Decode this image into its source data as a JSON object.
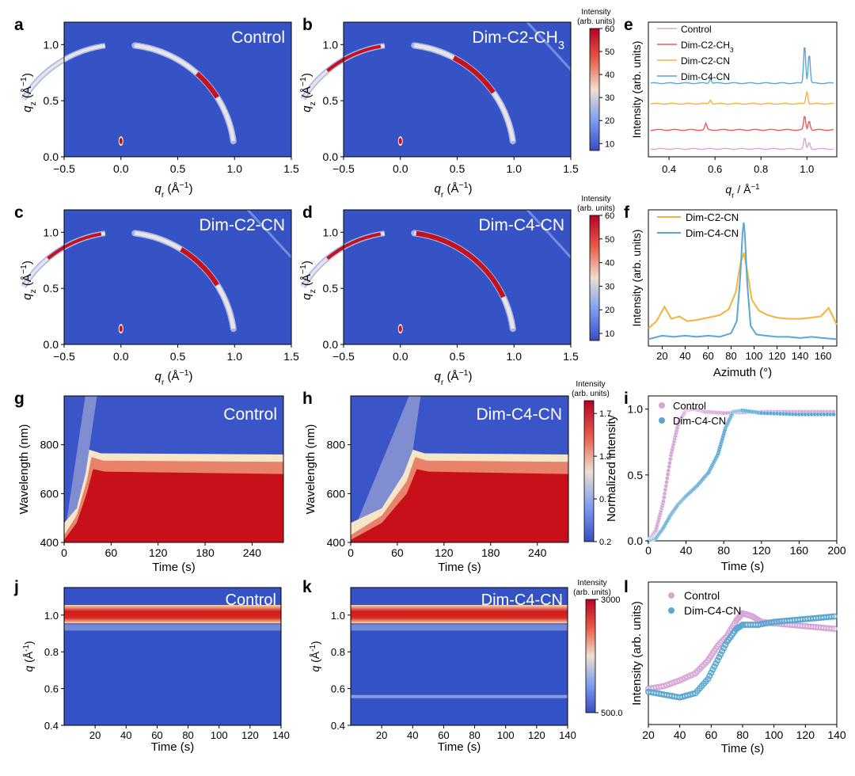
{
  "panels": {
    "a": {
      "letter": "a",
      "label": "Control"
    },
    "b": {
      "letter": "b",
      "label": "Dim-C2-CH",
      "label_sub": "3"
    },
    "c": {
      "letter": "c",
      "label": "Dim-C2-CN"
    },
    "d": {
      "letter": "d",
      "label": "Dim-C4-CN"
    },
    "e": {
      "letter": "e"
    },
    "f": {
      "letter": "f"
    },
    "g": {
      "letter": "g",
      "label": "Control"
    },
    "h": {
      "letter": "h",
      "label": "Dim-C4-CN"
    },
    "i": {
      "letter": "i"
    },
    "j": {
      "letter": "j",
      "label": "Control"
    },
    "k": {
      "letter": "k",
      "label": "Dim-C4-CN"
    },
    "l": {
      "letter": "l"
    }
  },
  "axes": {
    "giwaxs_x": {
      "label": "q",
      "sub": "r",
      "unit": " (Å",
      "sup": "−1",
      "close": ")",
      "ticks": [
        "−0.5",
        "0.0",
        "0.5",
        "1.0",
        "1.5"
      ]
    },
    "giwaxs_y": {
      "label": "q",
      "sub": "z",
      "unit": " (Å",
      "sup": "−1",
      "close": ")",
      "ticks": [
        "0.0",
        "0.5",
        "1.0"
      ]
    },
    "wl_y": {
      "label": "Wavelength (nm)",
      "ticks": [
        "400",
        "600",
        "800"
      ]
    },
    "time_x": {
      "label": "Time (s)",
      "ticks": [
        "0",
        "60",
        "120",
        "180",
        "240"
      ]
    },
    "insitu_y": {
      "label": "q",
      "unit": " (Å",
      "sup": "-1",
      "close": ")",
      "ticks": [
        "0.4",
        "0.6",
        "0.8",
        "1.0"
      ]
    },
    "insitu_x": {
      "label": "Time (s)",
      "ticks": [
        "20",
        "40",
        "60",
        "80",
        "100",
        "120",
        "140"
      ]
    }
  },
  "colorbars": {
    "top": {
      "title1": "Intensity",
      "title2": "(arb. units)",
      "ticks": [
        "10",
        "20",
        "30",
        "40",
        "50",
        "60"
      ]
    },
    "mid": {
      "title1": "Intensity",
      "title2": "(arb. units)",
      "ticks": [
        "10",
        "20",
        "30",
        "40",
        "50",
        "60"
      ]
    },
    "pl": {
      "title1": "Intensity",
      "title2": "(arb. units)",
      "ticks": [
        "0.2",
        "0.7",
        "1.2",
        "1.7"
      ]
    },
    "insitu": {
      "title1": "Intensity",
      "title2": "(arb. units)",
      "ticks": [
        "500.0",
        "3000"
      ]
    }
  },
  "colors": {
    "control": "#d7a6d9",
    "ch3": "#ee5b5b",
    "c2cn": "#f5b33e",
    "c4cn": "#5aa7d2",
    "map_bg": "#3050c8",
    "map_hot": "#c8101a"
  },
  "chart_data": [
    {
      "panel": "e",
      "type": "line",
      "xlabel": "q",
      "xlabel_sub": "r",
      "xlabel_unit": " / Å",
      "xlabel_sup": "−1",
      "ylabel": "Intensity (arb. units)",
      "xticks": [
        "0.4",
        "0.6",
        "0.8",
        "1.0"
      ],
      "xlim": [
        0.31,
        1.13
      ],
      "series": [
        {
          "name": "Control",
          "name_sub": "",
          "color": "#d7a6d9",
          "offset": 0,
          "peaks": [
            [
              0.99,
              14
            ],
            [
              1.01,
              8
            ]
          ]
        },
        {
          "name": "Dim-C2-CH",
          "name_sub": "3",
          "color": "#ee5b5b",
          "offset": 1,
          "peaks": [
            [
              0.56,
              8
            ],
            [
              0.99,
              18
            ],
            [
              1.01,
              12
            ]
          ]
        },
        {
          "name": "Dim-C2-CN",
          "name_sub": "",
          "color": "#f5b33e",
          "offset": 2,
          "peaks": [
            [
              0.58,
              5
            ],
            [
              1.0,
              16
            ]
          ]
        },
        {
          "name": "Dim-C4-CN",
          "name_sub": "",
          "color": "#5aa7d2",
          "offset": 3,
          "peaks": [
            [
              0.58,
              6
            ],
            [
              0.99,
              50
            ],
            [
              1.01,
              38
            ]
          ]
        }
      ]
    },
    {
      "panel": "f",
      "type": "line",
      "xlabel": "Azimuth (°)",
      "ylabel": "Intensity (arb. units)",
      "xticks": [
        "20",
        "40",
        "60",
        "80",
        "100",
        "120",
        "140",
        "160"
      ],
      "xlim": [
        8,
        172
      ],
      "series": [
        {
          "name": "Dim-C2-CN",
          "color": "#f5b33e",
          "x": [
            8,
            15,
            22,
            28,
            35,
            42,
            50,
            60,
            70,
            78,
            84,
            88,
            91,
            94,
            98,
            104,
            112,
            120,
            130,
            140,
            150,
            158,
            165,
            172
          ],
          "y": [
            0.12,
            0.18,
            0.3,
            0.2,
            0.22,
            0.18,
            0.19,
            0.21,
            0.23,
            0.28,
            0.42,
            0.65,
            0.75,
            0.6,
            0.36,
            0.27,
            0.23,
            0.21,
            0.2,
            0.2,
            0.21,
            0.22,
            0.29,
            0.15
          ]
        },
        {
          "name": "Dim-C4-CN",
          "color": "#5aa7d2",
          "x": [
            8,
            20,
            30,
            40,
            50,
            60,
            70,
            80,
            85,
            88,
            90,
            91,
            92,
            94,
            97,
            102,
            110,
            120,
            130,
            140,
            150,
            160,
            172
          ],
          "y": [
            0.03,
            0.06,
            0.05,
            0.06,
            0.05,
            0.06,
            0.05,
            0.08,
            0.18,
            0.55,
            0.92,
            1.0,
            0.9,
            0.5,
            0.14,
            0.07,
            0.06,
            0.05,
            0.05,
            0.04,
            0.05,
            0.04,
            0.03
          ]
        }
      ]
    },
    {
      "panel": "i",
      "type": "scatter",
      "xlabel": "Time (s)",
      "ylabel": "Normalized intensity",
      "xticks": [
        "0",
        "40",
        "80",
        "120",
        "160",
        "200"
      ],
      "yticks": [
        "0.0",
        "0.5",
        "1.0"
      ],
      "xlim": [
        0,
        200
      ],
      "ylim": [
        0,
        1.1
      ],
      "series": [
        {
          "name": "Control",
          "color": "#d7a6d9",
          "x": [
            0,
            8,
            16,
            24,
            32,
            40,
            48,
            60,
            80,
            120,
            160,
            200
          ],
          "y": [
            0.0,
            0.08,
            0.3,
            0.65,
            0.9,
            0.99,
            1.0,
            0.98,
            0.97,
            0.98,
            0.98,
            0.98
          ]
        },
        {
          "name": "Dim-C4-CN",
          "color": "#5aa7d2",
          "x": [
            0,
            8,
            16,
            24,
            32,
            40,
            52,
            64,
            74,
            82,
            90,
            100,
            120,
            160,
            200
          ],
          "y": [
            0.0,
            0.02,
            0.1,
            0.2,
            0.28,
            0.34,
            0.42,
            0.52,
            0.66,
            0.86,
            0.98,
            0.99,
            0.97,
            0.96,
            0.96
          ]
        }
      ]
    },
    {
      "panel": "l",
      "type": "scatter",
      "xlabel": "Time (s)",
      "ylabel": "Intensity (arb. units)",
      "xticks": [
        "20",
        "40",
        "60",
        "80",
        "100",
        "120",
        "140"
      ],
      "xlim": [
        20,
        140
      ],
      "series": [
        {
          "name": "Control",
          "color": "#d7a6d9",
          "x": [
            20,
            30,
            40,
            50,
            58,
            64,
            70,
            76,
            80,
            86,
            92,
            100,
            110,
            120,
            130,
            140
          ],
          "y": [
            0.25,
            0.27,
            0.31,
            0.36,
            0.45,
            0.55,
            0.62,
            0.73,
            0.78,
            0.76,
            0.72,
            0.71,
            0.7,
            0.69,
            0.68,
            0.67
          ]
        },
        {
          "name": "Dim-C4-CN",
          "color": "#5aa7d2",
          "x": [
            20,
            30,
            40,
            50,
            58,
            64,
            70,
            76,
            80,
            90,
            100,
            110,
            120,
            130,
            140
          ],
          "y": [
            0.23,
            0.21,
            0.19,
            0.22,
            0.32,
            0.45,
            0.58,
            0.67,
            0.7,
            0.7,
            0.72,
            0.73,
            0.74,
            0.75,
            0.76
          ]
        }
      ]
    }
  ]
}
